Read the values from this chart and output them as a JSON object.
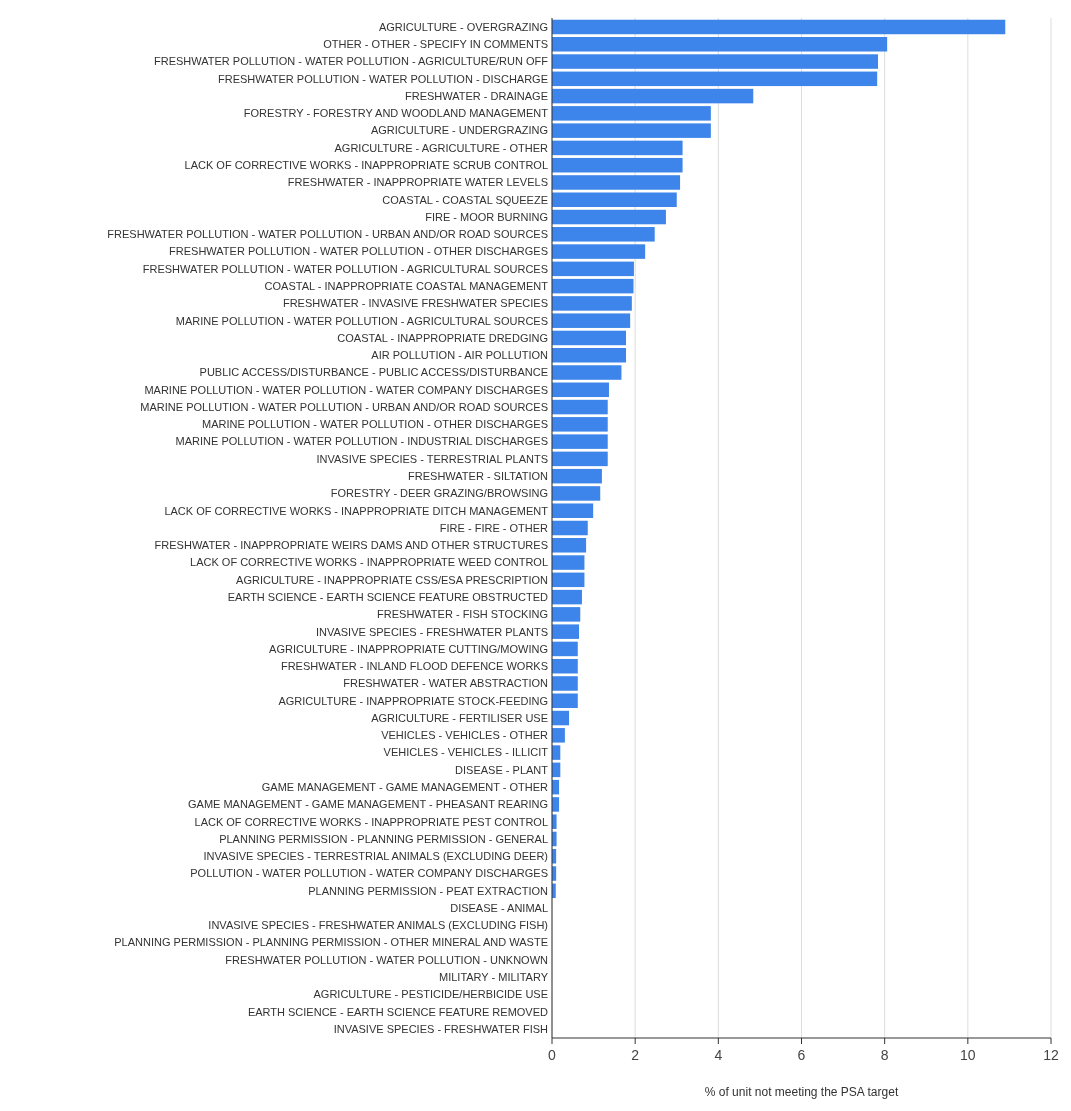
{
  "chart_data": {
    "type": "bar",
    "orientation": "horizontal",
    "xlabel": "% of unit not meeting the PSA target",
    "color": "#3d85ea",
    "xlim": [
      0,
      12
    ],
    "xticks": [
      0,
      2,
      4,
      6,
      8,
      10,
      12
    ],
    "grid": "x",
    "categories": [
      "AGRICULTURE - OVERGRAZING",
      "OTHER - OTHER - SPECIFY IN COMMENTS",
      "FRESHWATER POLLUTION - WATER POLLUTION - AGRICULTURE/RUN OFF",
      "FRESHWATER POLLUTION - WATER POLLUTION - DISCHARGE",
      "FRESHWATER - DRAINAGE",
      "FORESTRY - FORESTRY AND WOODLAND MANAGEMENT",
      "AGRICULTURE - UNDERGRAZING",
      "AGRICULTURE - AGRICULTURE - OTHER",
      "LACK OF CORRECTIVE WORKS - INAPPROPRIATE SCRUB CONTROL",
      "FRESHWATER - INAPPROPRIATE WATER LEVELS",
      "COASTAL - COASTAL SQUEEZE",
      "FIRE - MOOR BURNING",
      "FRESHWATER POLLUTION - WATER POLLUTION - URBAN AND/OR ROAD SOURCES",
      "FRESHWATER POLLUTION - WATER POLLUTION - OTHER DISCHARGES",
      "FRESHWATER POLLUTION - WATER POLLUTION - AGRICULTURAL SOURCES",
      "COASTAL - INAPPROPRIATE COASTAL MANAGEMENT",
      "FRESHWATER - INVASIVE FRESHWATER SPECIES",
      "MARINE POLLUTION - WATER POLLUTION - AGRICULTURAL SOURCES",
      "COASTAL - INAPPROPRIATE DREDGING",
      "AIR POLLUTION - AIR POLLUTION",
      "PUBLIC ACCESS/DISTURBANCE - PUBLIC ACCESS/DISTURBANCE",
      "MARINE POLLUTION - WATER POLLUTION - WATER COMPANY DISCHARGES",
      "MARINE POLLUTION - WATER POLLUTION - URBAN AND/OR ROAD SOURCES",
      "MARINE POLLUTION - WATER POLLUTION - OTHER DISCHARGES",
      "MARINE POLLUTION - WATER POLLUTION - INDUSTRIAL DISCHARGES",
      "INVASIVE SPECIES - TERRESTRIAL PLANTS",
      "FRESHWATER - SILTATION",
      "FORESTRY - DEER GRAZING/BROWSING",
      "LACK OF CORRECTIVE WORKS - INAPPROPRIATE DITCH MANAGEMENT",
      "FIRE - FIRE - OTHER",
      "FRESHWATER - INAPPROPRIATE WEIRS DAMS AND OTHER STRUCTURES",
      "LACK OF CORRECTIVE WORKS - INAPPROPRIATE WEED CONTROL",
      "AGRICULTURE - INAPPROPRIATE CSS/ESA PRESCRIPTION",
      "EARTH SCIENCE - EARTH SCIENCE FEATURE OBSTRUCTED",
      "FRESHWATER - FISH STOCKING",
      "INVASIVE SPECIES - FRESHWATER PLANTS",
      "AGRICULTURE - INAPPROPRIATE CUTTING/MOWING",
      "FRESHWATER - INLAND FLOOD DEFENCE WORKS",
      "FRESHWATER - WATER ABSTRACTION",
      "AGRICULTURE - INAPPROPRIATE STOCK-FEEDING",
      "AGRICULTURE - FERTILISER USE",
      "VEHICLES - VEHICLES - OTHER",
      "VEHICLES - VEHICLES - ILLICIT",
      "DISEASE - PLANT",
      "GAME MANAGEMENT - GAME MANAGEMENT - OTHER",
      "GAME MANAGEMENT - GAME MANAGEMENT - PHEASANT REARING",
      "LACK OF CORRECTIVE WORKS - INAPPROPRIATE PEST CONTROL",
      "PLANNING PERMISSION - PLANNING PERMISSION - GENERAL",
      "INVASIVE SPECIES - TERRESTRIAL ANIMALS (EXCLUDING DEER)",
      "POLLUTION - WATER POLLUTION - WATER COMPANY DISCHARGES",
      "PLANNING PERMISSION - PEAT EXTRACTION",
      "DISEASE - ANIMAL",
      "INVASIVE SPECIES - FRESHWATER ANIMALS (EXCLUDING FISH)",
      "PLANNING PERMISSION - PLANNING PERMISSION - OTHER MINERAL AND WASTE",
      "FRESHWATER POLLUTION - WATER POLLUTION - UNKNOWN",
      "MILITARY - MILITARY",
      "AGRICULTURE - PESTICIDE/HERBICIDE USE",
      "EARTH SCIENCE - EARTH SCIENCE FEATURE REMOVED",
      "INVASIVE SPECIES - FRESHWATER FISH"
    ],
    "values": [
      10.9,
      8.06,
      7.84,
      7.82,
      4.84,
      3.82,
      3.82,
      3.14,
      3.14,
      3.08,
      3.0,
      2.74,
      2.47,
      2.24,
      1.97,
      1.96,
      1.92,
      1.88,
      1.78,
      1.78,
      1.67,
      1.37,
      1.34,
      1.34,
      1.34,
      1.34,
      1.2,
      1.16,
      0.99,
      0.86,
      0.82,
      0.78,
      0.78,
      0.72,
      0.68,
      0.65,
      0.62,
      0.62,
      0.62,
      0.62,
      0.41,
      0.31,
      0.2,
      0.2,
      0.17,
      0.17,
      0.11,
      0.11,
      0.1,
      0.1,
      0.09,
      0,
      0,
      0,
      0,
      0,
      0,
      0,
      0
    ]
  }
}
